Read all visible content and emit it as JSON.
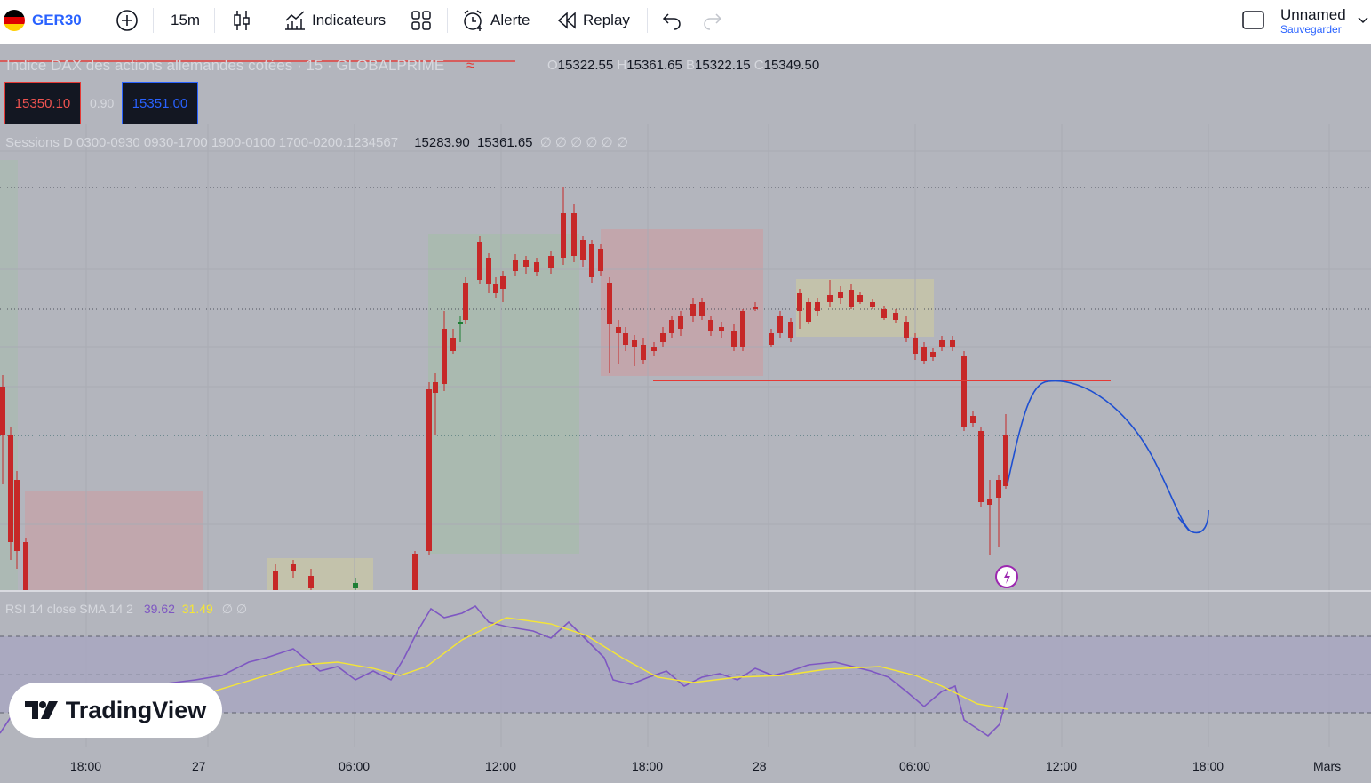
{
  "toolbar": {
    "symbol": "GER30",
    "interval": "15m",
    "indicators_label": "Indicateurs",
    "alert_label": "Alerte",
    "replay_label": "Replay",
    "layout_name": "Unnamed",
    "save_label": "Sauvegarder"
  },
  "legend": {
    "title": "Indice DAX des actions allemandes cotées · 15 · GLOBALPRIME",
    "o_label": "O",
    "o_value": "15322.55",
    "h_label": "H",
    "h_value": "15361.65",
    "b_label": "B",
    "b_value": "15322.15",
    "c_label": "C",
    "c_value": "15349.50",
    "sell_price": "15350.10",
    "spread": "0.90",
    "buy_price": "15351.00",
    "sessions_label": "Sessions D 0300-0930 0930-1700 1900-0100 1700-0200:1234567",
    "sessions_v1": "15283.90",
    "sessions_v2": "15361.65",
    "sessions_rest": "∅ ∅ ∅ ∅ ∅ ∅"
  },
  "rsi": {
    "label": "RSI 14 close SMA 14 2",
    "rsi_value": "39.62",
    "sma_value": "31.49",
    "rest": "∅ ∅"
  },
  "colors": {
    "bull": "#1e7e34",
    "bear": "#c62828",
    "rsi_line": "#7e57c2",
    "sma_line": "#f5e634",
    "drawing": "#1e4fd1",
    "level": "#e53935"
  },
  "brand": "TradingView",
  "xaxis": [
    "18:00",
    "27",
    "06:00",
    "12:00",
    "18:00",
    "28",
    "06:00",
    "12:00",
    "18:00",
    "Mars"
  ],
  "chart_data": {
    "type": "candlestick",
    "interval": "15",
    "last_close": 15349.5,
    "rsi_last": 39.62,
    "rsi_sma_last": 31.49
  }
}
